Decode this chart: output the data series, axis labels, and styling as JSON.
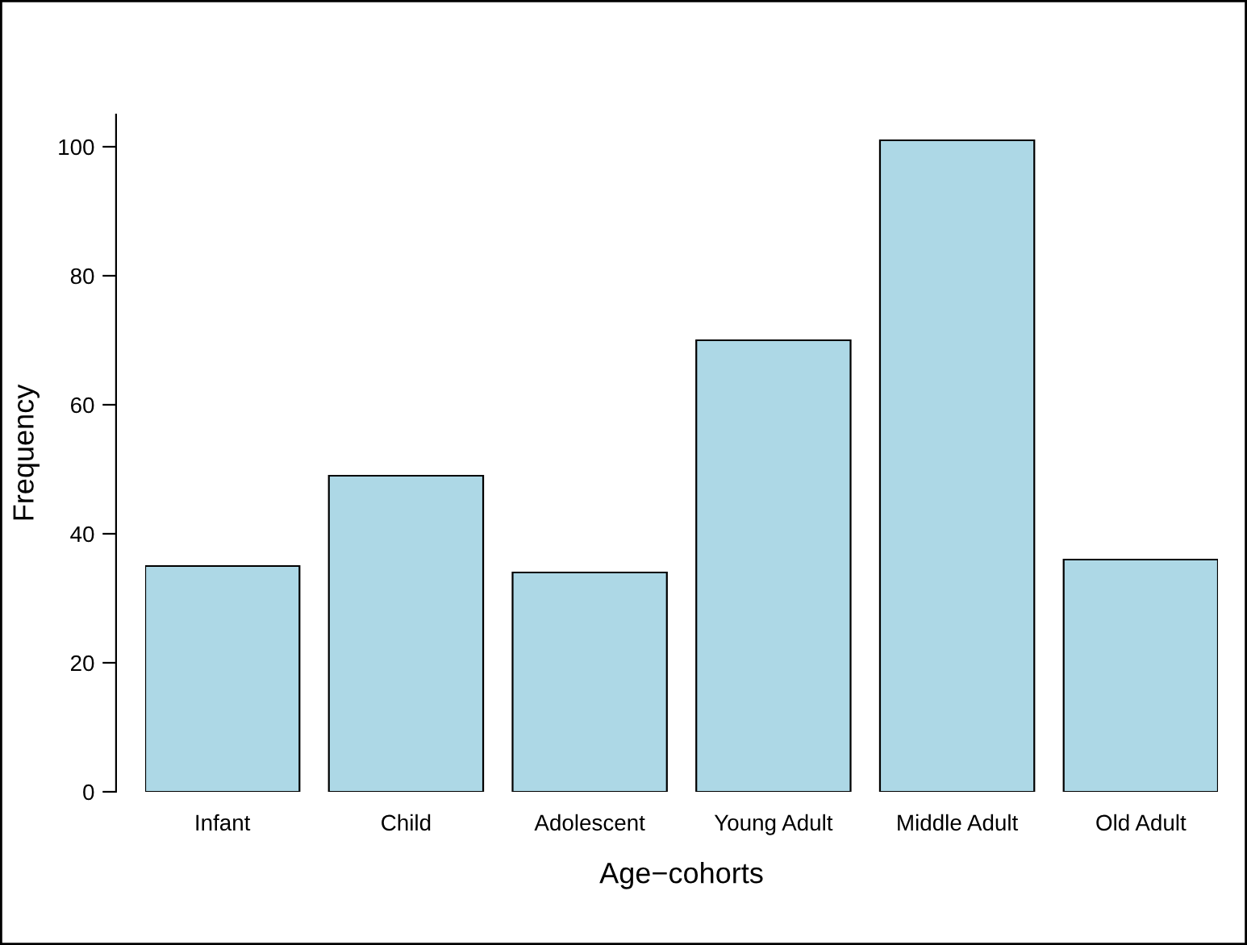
{
  "chart_data": {
    "type": "bar",
    "xlabel": "Age−cohorts",
    "ylabel": "Frequency",
    "categories": [
      "Infant",
      "Child",
      "Adolescent",
      "Young Adult",
      "Middle Adult",
      "Old Adult"
    ],
    "values": [
      35,
      49,
      34,
      70,
      101,
      36
    ],
    "color": "#add8e6",
    "ylim": [
      0,
      105
    ],
    "yticks": [
      0,
      20,
      40,
      60,
      80,
      100
    ],
    "grid": false,
    "legend": false
  }
}
